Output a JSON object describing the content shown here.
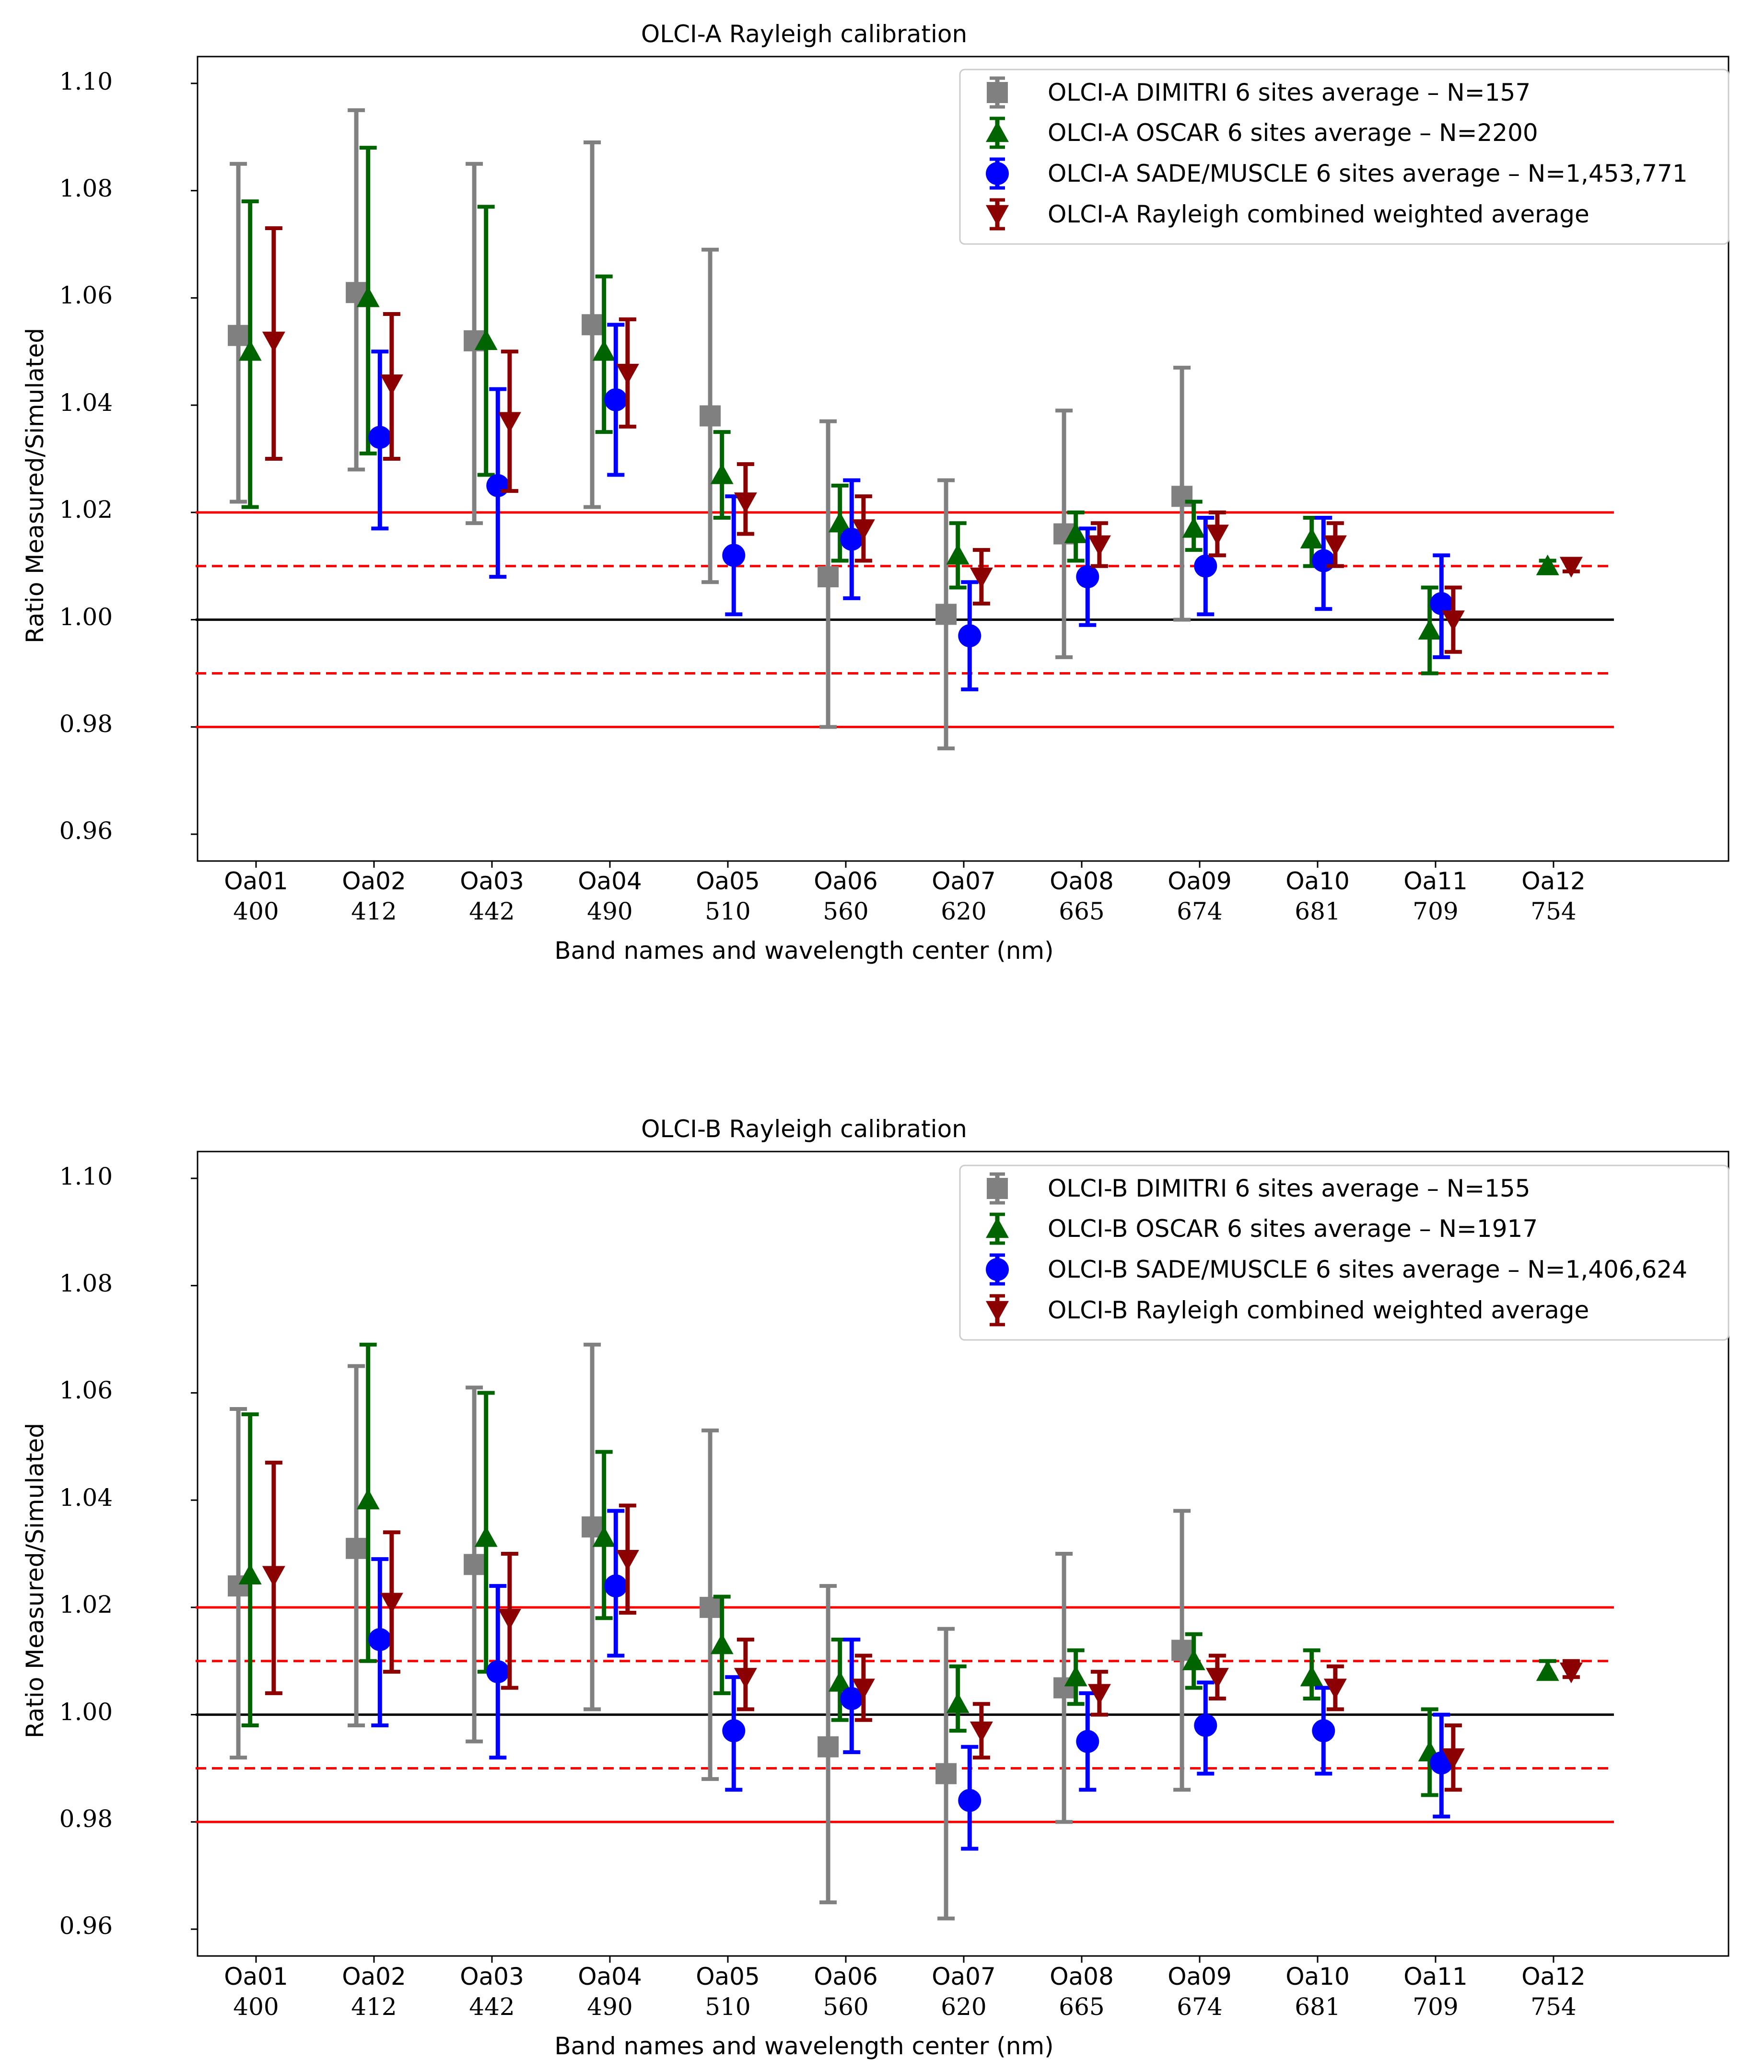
{
  "chart_data": [
    {
      "type": "errorbar",
      "title": "OLCI-A Rayleigh calibration",
      "xlabel": "Band names and wavelength center (nm)",
      "ylabel": "Ratio Measured/Simulated",
      "ylim": [
        0.955,
        1.105
      ],
      "yticks": [
        "0.96",
        "0.98",
        "1.00",
        "1.02",
        "1.04",
        "1.06",
        "1.08",
        "1.10"
      ],
      "bands": [
        "Oa01",
        "Oa02",
        "Oa03",
        "Oa04",
        "Oa05",
        "Oa06",
        "Oa07",
        "Oa08",
        "Oa09",
        "Oa10",
        "Oa11",
        "Oa12"
      ],
      "wavelengths": [
        "400",
        "412",
        "442",
        "490",
        "510",
        "560",
        "620",
        "665",
        "674",
        "681",
        "709",
        "754"
      ],
      "legend_position": "upper right",
      "reference_lines": [
        {
          "y": 1.0,
          "style": "solid",
          "color": "#000000"
        },
        {
          "y": 1.02,
          "style": "solid",
          "color": "#ff0000"
        },
        {
          "y": 0.98,
          "style": "solid",
          "color": "#ff0000"
        },
        {
          "y": 1.01,
          "style": "dashed",
          "color": "#ff0000"
        },
        {
          "y": 0.99,
          "style": "dashed",
          "color": "#ff0000"
        }
      ],
      "series": [
        {
          "name": "OLCI-A DIMITRI 6 sites average – N=157",
          "color": "#808080",
          "marker": "square",
          "offset": -0.15,
          "values": [
            1.053,
            1.061,
            1.052,
            1.055,
            1.038,
            1.008,
            1.001,
            1.016,
            1.023,
            null,
            null,
            null
          ],
          "lower": [
            1.022,
            1.028,
            1.018,
            1.021,
            1.007,
            0.98,
            0.976,
            0.993,
            1.0,
            null,
            null,
            null
          ],
          "upper": [
            1.085,
            1.095,
            1.085,
            1.089,
            1.069,
            1.037,
            1.026,
            1.039,
            1.047,
            null,
            null,
            null
          ]
        },
        {
          "name": "OLCI-A OSCAR 6 sites average – N=2200",
          "color": "#006400",
          "marker": "triangle-up",
          "offset": -0.05,
          "values": [
            1.05,
            1.06,
            1.052,
            1.05,
            1.027,
            1.018,
            1.012,
            1.016,
            1.017,
            1.015,
            0.998,
            1.01
          ],
          "lower": [
            1.021,
            1.031,
            1.027,
            1.035,
            1.019,
            1.011,
            1.006,
            1.011,
            1.013,
            1.01,
            0.99,
            1.009
          ],
          "upper": [
            1.078,
            1.088,
            1.077,
            1.064,
            1.035,
            1.025,
            1.018,
            1.02,
            1.022,
            1.019,
            1.006,
            1.011
          ]
        },
        {
          "name": "OLCI-A SADE/MUSCLE 6 sites average – N=1,453,771",
          "color": "#0000ff",
          "marker": "circle",
          "offset": 0.05,
          "values": [
            null,
            1.034,
            1.025,
            1.041,
            1.012,
            1.015,
            0.997,
            1.008,
            1.01,
            1.011,
            1.003,
            null
          ],
          "lower": [
            null,
            1.017,
            1.008,
            1.027,
            1.001,
            1.004,
            0.987,
            0.999,
            1.001,
            1.002,
            0.993,
            null
          ],
          "upper": [
            null,
            1.05,
            1.043,
            1.055,
            1.023,
            1.026,
            1.007,
            1.017,
            1.019,
            1.019,
            1.012,
            null
          ]
        },
        {
          "name": "OLCI-A Rayleigh combined weighted average",
          "color": "#8b0000",
          "marker": "triangle-down",
          "offset": 0.15,
          "values": [
            1.052,
            1.044,
            1.037,
            1.046,
            1.022,
            1.017,
            1.008,
            1.014,
            1.016,
            1.014,
            1.0,
            1.01
          ],
          "lower": [
            1.03,
            1.03,
            1.024,
            1.036,
            1.016,
            1.011,
            1.003,
            1.01,
            1.012,
            1.01,
            0.994,
            1.009
          ],
          "upper": [
            1.073,
            1.057,
            1.05,
            1.056,
            1.029,
            1.023,
            1.013,
            1.018,
            1.02,
            1.018,
            1.006,
            1.011
          ]
        }
      ]
    },
    {
      "type": "errorbar",
      "title": "OLCI-B Rayleigh calibration",
      "xlabel": "Band names and wavelength center (nm)",
      "ylabel": "Ratio Measured/Simulated",
      "ylim": [
        0.955,
        1.105
      ],
      "yticks": [
        "0.96",
        "0.98",
        "1.00",
        "1.02",
        "1.04",
        "1.06",
        "1.08",
        "1.10"
      ],
      "bands": [
        "Oa01",
        "Oa02",
        "Oa03",
        "Oa04",
        "Oa05",
        "Oa06",
        "Oa07",
        "Oa08",
        "Oa09",
        "Oa10",
        "Oa11",
        "Oa12"
      ],
      "wavelengths": [
        "400",
        "412",
        "442",
        "490",
        "510",
        "560",
        "620",
        "665",
        "674",
        "681",
        "709",
        "754"
      ],
      "legend_position": "upper right",
      "reference_lines": [
        {
          "y": 1.0,
          "style": "solid",
          "color": "#000000"
        },
        {
          "y": 1.02,
          "style": "solid",
          "color": "#ff0000"
        },
        {
          "y": 0.98,
          "style": "solid",
          "color": "#ff0000"
        },
        {
          "y": 1.01,
          "style": "dashed",
          "color": "#ff0000"
        },
        {
          "y": 0.99,
          "style": "dashed",
          "color": "#ff0000"
        }
      ],
      "series": [
        {
          "name": "OLCI-B DIMITRI 6 sites average – N=155",
          "color": "#808080",
          "marker": "square",
          "offset": -0.15,
          "values": [
            1.024,
            1.031,
            1.028,
            1.035,
            1.02,
            0.994,
            0.989,
            1.005,
            1.012,
            null,
            null,
            null
          ],
          "lower": [
            0.992,
            0.998,
            0.995,
            1.001,
            0.988,
            0.965,
            0.962,
            0.98,
            0.986,
            null,
            null,
            null
          ],
          "upper": [
            1.057,
            1.065,
            1.061,
            1.069,
            1.053,
            1.024,
            1.016,
            1.03,
            1.038,
            null,
            null,
            null
          ]
        },
        {
          "name": "OLCI-B OSCAR 6 sites average – N=1917",
          "color": "#006400",
          "marker": "triangle-up",
          "offset": -0.05,
          "values": [
            1.026,
            1.04,
            1.033,
            1.033,
            1.013,
            1.006,
            1.002,
            1.007,
            1.01,
            1.007,
            0.993,
            1.008
          ],
          "lower": [
            0.998,
            1.01,
            1.008,
            1.018,
            1.004,
            0.999,
            0.997,
            1.002,
            1.005,
            1.003,
            0.985,
            1.007
          ],
          "upper": [
            1.056,
            1.069,
            1.06,
            1.049,
            1.022,
            1.014,
            1.009,
            1.012,
            1.015,
            1.012,
            1.001,
            1.01
          ]
        },
        {
          "name": "OLCI-B SADE/MUSCLE 6 sites average – N=1,406,624",
          "color": "#0000ff",
          "marker": "circle",
          "offset": 0.05,
          "values": [
            null,
            1.014,
            1.008,
            1.024,
            0.997,
            1.003,
            0.984,
            0.995,
            0.998,
            0.997,
            0.991,
            null
          ],
          "lower": [
            null,
            0.998,
            0.992,
            1.011,
            0.986,
            0.993,
            0.975,
            0.986,
            0.989,
            0.989,
            0.981,
            null
          ],
          "upper": [
            null,
            1.029,
            1.024,
            1.038,
            1.007,
            1.014,
            0.994,
            1.004,
            1.006,
            1.005,
            1.0,
            null
          ]
        },
        {
          "name": "OLCI-B Rayleigh combined weighted average",
          "color": "#8b0000",
          "marker": "triangle-down",
          "offset": 0.15,
          "values": [
            1.026,
            1.021,
            1.018,
            1.029,
            1.007,
            1.005,
            0.997,
            1.004,
            1.007,
            1.005,
            0.992,
            1.008
          ],
          "lower": [
            1.004,
            1.008,
            1.005,
            1.019,
            1.001,
            0.999,
            0.992,
            1.0,
            1.003,
            1.001,
            0.986,
            1.007
          ],
          "upper": [
            1.047,
            1.034,
            1.03,
            1.039,
            1.014,
            1.011,
            1.002,
            1.008,
            1.011,
            1.009,
            0.998,
            1.01
          ]
        }
      ]
    }
  ]
}
